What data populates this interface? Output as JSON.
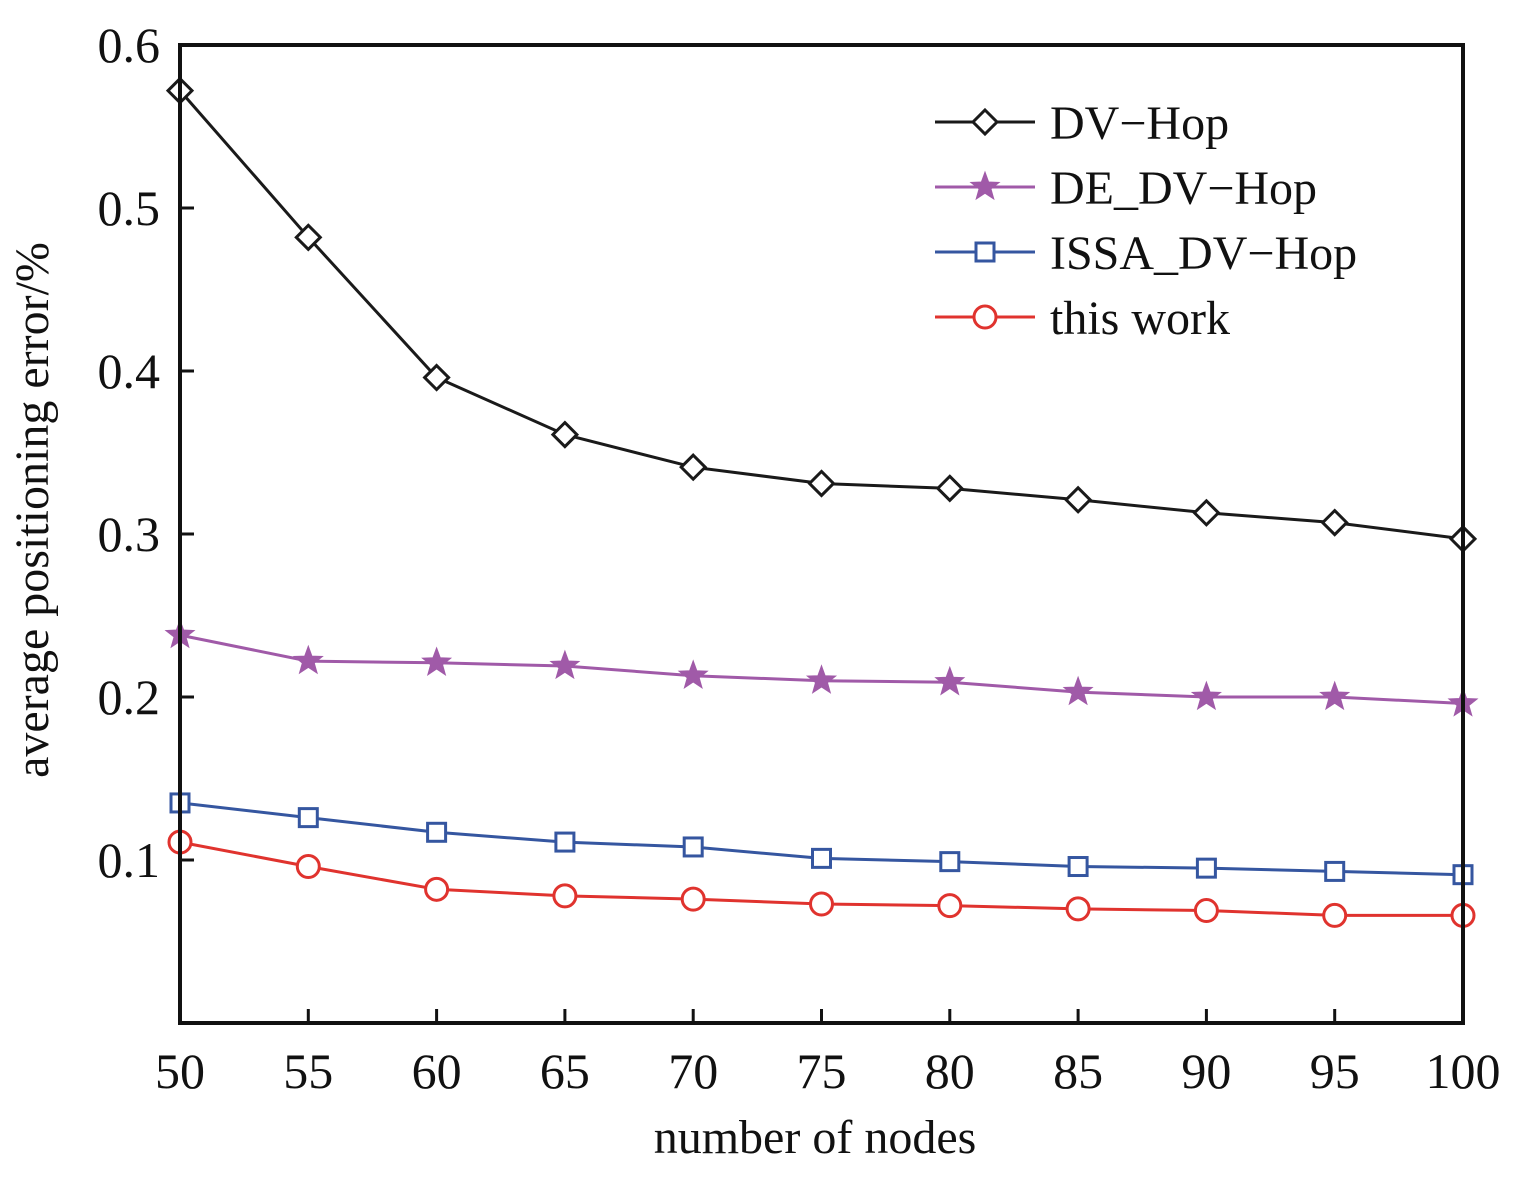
{
  "chart_data": {
    "type": "line",
    "xlabel": "number of nodes",
    "ylabel": "average positioning error/%",
    "x": [
      50,
      55,
      60,
      65,
      70,
      75,
      80,
      85,
      90,
      95,
      100
    ],
    "xlim": [
      50,
      100
    ],
    "ylim": [
      0,
      0.6
    ],
    "x_ticks": [
      "50",
      "55",
      "60",
      "65",
      "70",
      "75",
      "80",
      "85",
      "90",
      "95",
      "100"
    ],
    "y_ticks": [
      "0.1",
      "0.2",
      "0.3",
      "0.4",
      "0.5",
      "0.6"
    ],
    "grid": false,
    "legend_position": "top-right",
    "series": [
      {
        "name": "DV−Hop",
        "color": "#1a1a1a",
        "marker": "diamond",
        "values": [
          0.572,
          0.482,
          0.396,
          0.361,
          0.341,
          0.331,
          0.328,
          0.321,
          0.313,
          0.307,
          0.297
        ]
      },
      {
        "name": "DE_DV−Hop",
        "color": "#a05aa8",
        "marker": "star",
        "values": [
          0.238,
          0.222,
          0.221,
          0.219,
          0.213,
          0.21,
          0.209,
          0.203,
          0.2,
          0.2,
          0.196
        ]
      },
      {
        "name": "ISSA_DV−Hop",
        "color": "#3556a0",
        "marker": "square",
        "values": [
          0.135,
          0.126,
          0.117,
          0.111,
          0.108,
          0.101,
          0.099,
          0.096,
          0.095,
          0.093,
          0.091
        ]
      },
      {
        "name": "this work",
        "color": "#e0332e",
        "marker": "circle",
        "values": [
          0.111,
          0.096,
          0.082,
          0.078,
          0.076,
          0.073,
          0.072,
          0.07,
          0.069,
          0.066,
          0.066
        ]
      }
    ]
  }
}
